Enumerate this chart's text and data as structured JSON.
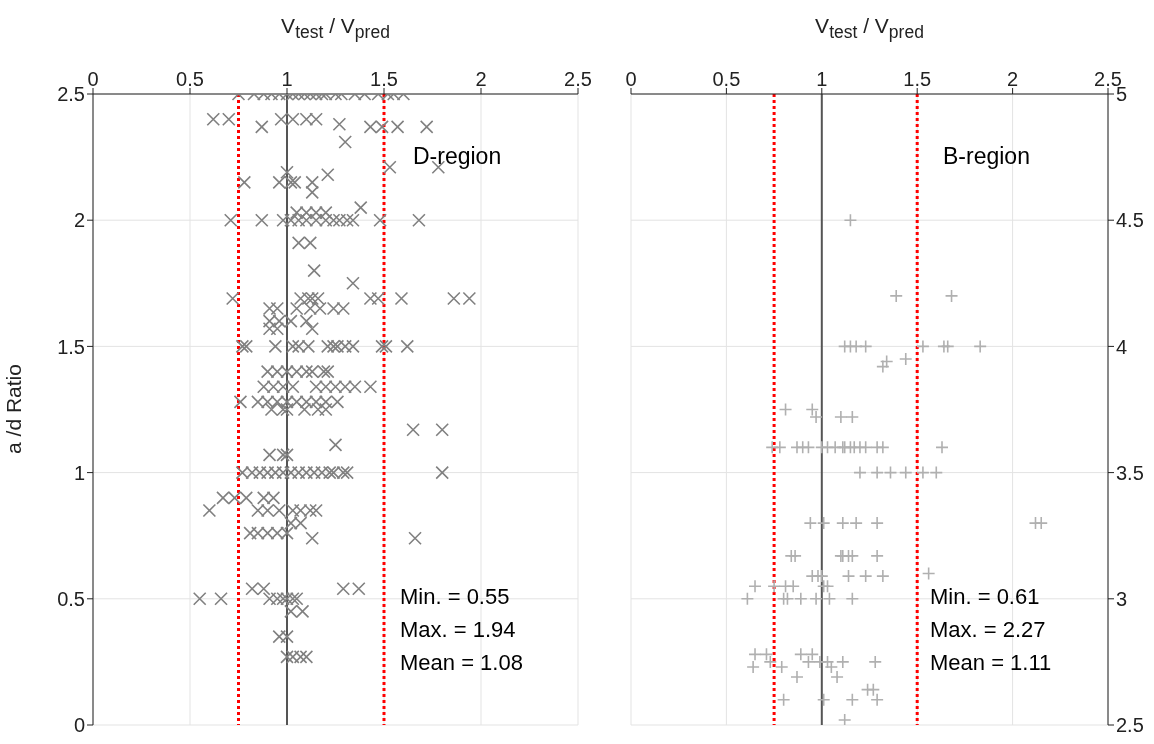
{
  "chart_data": [
    {
      "type": "scatter",
      "xlabel": "V$_{test}$ / V$_{pred}$",
      "ylabel": "a /d Ratio",
      "xlim": [
        0,
        2.5
      ],
      "xticks": [
        0,
        0.5,
        1,
        1.5,
        2,
        2.5
      ],
      "ylim": [
        0,
        2.5
      ],
      "yticks": [
        0,
        0.5,
        1,
        1.5,
        2,
        2.5
      ],
      "grid": true,
      "marker": "x",
      "ref_lines": [
        {
          "axis": "x",
          "value": 0.75,
          "color": "#ff0000",
          "line_style": "dotted"
        },
        {
          "axis": "x",
          "value": 1,
          "color": "#555555",
          "line_style": "solid"
        },
        {
          "axis": "x",
          "value": 1.5,
          "color": "#ff0000",
          "line_style": "dotted"
        }
      ],
      "annotations": [
        "D-region",
        "Min. = 0.55",
        "Max. = 1.94",
        "Mean = 1.08"
      ],
      "series": [
        {
          "color": "#808080",
          "x": [
            0.75,
            0.83,
            0.88,
            0.92,
            0.96,
            1.0,
            1.03,
            1.06,
            1.09,
            1.12,
            1.15,
            1.18,
            1.2,
            1.25,
            1.28,
            1.35,
            1.4,
            1.47,
            1.52,
            1.55,
            1.6,
            0.62,
            0.7,
            0.97,
            1.03,
            1.1,
            1.15,
            1.27,
            0.87,
            1.43,
            1.49,
            1.57,
            1.72,
            1.3,
            1.53,
            1.78,
            1.21,
            1.0,
            0.78,
            0.96,
            1.02,
            1.04,
            1.13,
            1.13,
            1.38,
            1.05,
            1.1,
            1.15,
            1.2,
            0.71,
            0.87,
            0.98,
            1.02,
            1.06,
            1.1,
            1.15,
            1.2,
            1.24,
            1.27,
            1.31,
            1.34,
            1.48,
            1.68,
            1.06,
            1.12,
            1.14,
            1.34,
            0.72,
            1.07,
            1.11,
            1.13,
            1.16,
            1.43,
            1.47,
            1.59,
            1.86,
            1.94,
            0.91,
            0.95,
            1.05,
            1.12,
            1.17,
            1.24,
            1.29,
            0.91,
            0.96,
            1.02,
            1.1,
            0.91,
            0.95,
            1.13,
            0.77,
            0.79,
            0.94,
            1.03,
            1.06,
            1.11,
            1.21,
            1.24,
            1.26,
            1.3,
            1.34,
            1.49,
            1.51,
            1.62,
            0.9,
            0.95,
            1.0,
            1.05,
            1.1,
            1.13,
            1.19,
            1.21,
            0.88,
            0.93,
            0.98,
            1.03,
            1.15,
            1.2,
            1.25,
            1.3,
            1.35,
            1.43,
            0.76,
            0.85,
            0.9,
            0.95,
            1.0,
            1.05,
            1.1,
            1.15,
            1.2,
            1.26,
            0.92,
            0.98,
            1.0,
            1.09,
            1.16,
            1.2,
            1.65,
            1.8,
            1.25,
            0.91,
            0.98,
            1.0,
            0.77,
            0.82,
            0.86,
            0.9,
            0.94,
            0.98,
            1.02,
            1.06,
            1.1,
            1.14,
            1.18,
            1.22,
            1.24,
            1.29,
            1.31,
            1.8,
            0.67,
            0.73,
            0.79,
            0.88,
            0.93,
            0.6,
            0.85,
            0.9,
            0.96,
            1.03,
            1.07,
            1.12,
            1.15,
            1.02,
            1.07,
            0.81,
            0.85,
            0.9,
            0.95,
            1.0,
            1.13,
            1.66,
            0.82,
            0.88,
            1.29,
            1.37,
            0.55,
            0.66,
            0.91,
            0.95,
            0.98,
            1.0,
            1.03,
            1.05,
            1.02,
            1.08,
            0.96,
            1.0,
            1.0,
            1.03,
            1.07,
            1.1
          ],
          "values": [
            2.5,
            2.5,
            2.5,
            2.5,
            2.5,
            2.5,
            2.5,
            2.5,
            2.5,
            2.5,
            2.5,
            2.5,
            2.5,
            2.5,
            2.5,
            2.5,
            2.5,
            2.5,
            2.5,
            2.5,
            2.5,
            2.4,
            2.4,
            2.4,
            2.4,
            2.4,
            2.4,
            2.38,
            2.37,
            2.37,
            2.37,
            2.37,
            2.37,
            2.31,
            2.21,
            2.21,
            2.18,
            2.19,
            2.15,
            2.15,
            2.15,
            2.15,
            2.15,
            2.11,
            2.05,
            2.03,
            2.03,
            2.03,
            2.03,
            2.0,
            2.0,
            2.0,
            2.0,
            2.0,
            2.0,
            2.0,
            2.0,
            2.0,
            2.0,
            2.0,
            2.0,
            2.0,
            2.0,
            1.91,
            1.91,
            1.8,
            1.75,
            1.69,
            1.69,
            1.69,
            1.69,
            1.69,
            1.69,
            1.69,
            1.69,
            1.69,
            1.69,
            1.65,
            1.65,
            1.65,
            1.65,
            1.65,
            1.65,
            1.65,
            1.6,
            1.6,
            1.6,
            1.6,
            1.57,
            1.57,
            1.57,
            1.5,
            1.5,
            1.5,
            1.5,
            1.5,
            1.5,
            1.5,
            1.5,
            1.5,
            1.5,
            1.5,
            1.5,
            1.5,
            1.5,
            1.4,
            1.4,
            1.4,
            1.4,
            1.4,
            1.4,
            1.4,
            1.4,
            1.34,
            1.34,
            1.34,
            1.34,
            1.34,
            1.34,
            1.34,
            1.34,
            1.34,
            1.34,
            1.28,
            1.28,
            1.28,
            1.28,
            1.28,
            1.28,
            1.28,
            1.28,
            1.28,
            1.28,
            1.25,
            1.25,
            1.25,
            1.25,
            1.25,
            1.25,
            1.17,
            1.17,
            1.11,
            1.07,
            1.07,
            1.07,
            1.0,
            1.0,
            1.0,
            1.0,
            1.0,
            1.0,
            1.0,
            1.0,
            1.0,
            1.0,
            1.0,
            1.0,
            1.0,
            1.0,
            1.0,
            1.0,
            0.9,
            0.9,
            0.9,
            0.9,
            0.9,
            0.85,
            0.85,
            0.85,
            0.85,
            0.85,
            0.85,
            0.85,
            0.85,
            0.8,
            0.8,
            0.76,
            0.76,
            0.76,
            0.76,
            0.76,
            0.74,
            0.74,
            0.54,
            0.54,
            0.54,
            0.54,
            0.5,
            0.5,
            0.5,
            0.5,
            0.5,
            0.5,
            0.5,
            0.5,
            0.45,
            0.45,
            0.35,
            0.35,
            0.27,
            0.27,
            0.27,
            0.27
          ]
        }
      ]
    },
    {
      "type": "scatter",
      "xlabel": "V$_{test}$ / V$_{pred}$",
      "xlim": [
        0,
        2.5
      ],
      "xticks": [
        0,
        0.5,
        1,
        1.5,
        2,
        2.5
      ],
      "ylim": [
        2.5,
        5
      ],
      "yticks": [
        2.5,
        3,
        3.5,
        4,
        4.5,
        5
      ],
      "grid": true,
      "marker": "cross",
      "ref_lines": [
        {
          "axis": "x",
          "value": 0.75,
          "color": "#ff0000",
          "line_style": "dotted"
        },
        {
          "axis": "x",
          "value": 1,
          "color": "#555555",
          "line_style": "solid"
        },
        {
          "axis": "x",
          "value": 1.5,
          "color": "#ff0000",
          "line_style": "dotted"
        }
      ],
      "annotations": [
        "B-region",
        "Min. = 0.61",
        "Max. = 2.27",
        "Mean = 1.11"
      ],
      "series": [
        {
          "color": "#b0b0b0",
          "x": [
            1.15,
            1.39,
            1.68,
            1.12,
            1.15,
            1.18,
            1.23,
            1.53,
            1.64,
            1.66,
            1.83,
            1.44,
            1.34,
            1.32,
            0.81,
            0.95,
            0.97,
            1.1,
            1.16,
            0.74,
            0.78,
            0.87,
            0.9,
            0.93,
            1.0,
            1.03,
            1.07,
            1.11,
            1.12,
            1.15,
            1.17,
            1.2,
            1.23,
            1.29,
            1.32,
            1.63,
            1.2,
            1.29,
            1.36,
            1.44,
            1.53,
            1.6,
            0.94,
            1.01,
            1.11,
            1.18,
            1.29,
            2.12,
            2.15,
            0.84,
            0.86,
            1.1,
            1.11,
            1.14,
            1.16,
            1.29,
            1.56,
            0.95,
            0.98,
            1.0,
            1.14,
            1.23,
            1.32,
            0.65,
            0.75,
            0.81,
            0.85,
            1.01,
            1.03,
            0.61,
            0.8,
            0.82,
            0.89,
            0.97,
            1.04,
            1.16,
            0.65,
            0.71,
            0.89,
            0.95,
            0.73,
            0.93,
            0.99,
            1.03,
            1.11,
            1.28,
            0.64,
            0.79,
            1.05,
            0.87,
            1.08,
            1.24,
            1.27,
            0.8,
            1.01,
            1.16,
            1.29,
            1.12
          ],
          "values": [
            4.5,
            4.2,
            4.2,
            4.0,
            4.0,
            4.0,
            4.0,
            4.0,
            4.0,
            4.0,
            4.0,
            3.95,
            3.94,
            3.92,
            3.75,
            3.75,
            3.72,
            3.72,
            3.72,
            3.6,
            3.6,
            3.6,
            3.6,
            3.6,
            3.6,
            3.6,
            3.6,
            3.6,
            3.6,
            3.6,
            3.6,
            3.6,
            3.6,
            3.6,
            3.6,
            3.6,
            3.5,
            3.5,
            3.5,
            3.5,
            3.5,
            3.5,
            3.3,
            3.3,
            3.3,
            3.3,
            3.3,
            3.3,
            3.3,
            3.17,
            3.17,
            3.17,
            3.17,
            3.17,
            3.17,
            3.17,
            3.1,
            3.09,
            3.09,
            3.09,
            3.09,
            3.09,
            3.09,
            3.05,
            3.05,
            3.05,
            3.05,
            3.05,
            3.05,
            3.0,
            3.0,
            3.0,
            3.0,
            3.0,
            3.0,
            3.0,
            2.78,
            2.78,
            2.78,
            2.78,
            2.75,
            2.75,
            2.75,
            2.75,
            2.75,
            2.75,
            2.73,
            2.73,
            2.73,
            2.69,
            2.69,
            2.64,
            2.64,
            2.6,
            2.6,
            2.6,
            2.6,
            2.52
          ]
        }
      ]
    }
  ]
}
